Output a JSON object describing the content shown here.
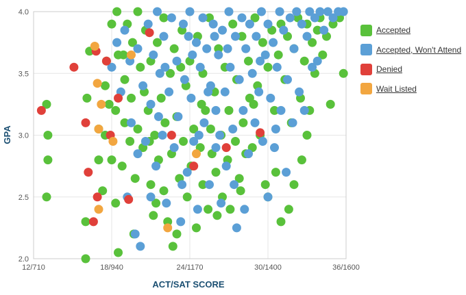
{
  "chart_data": {
    "type": "scatter",
    "title": "",
    "xlabel": "ACT/SAT SCORE",
    "ylabel": "GPA",
    "x_ticks": [
      "12/710",
      "18/940",
      "24/1170",
      "30/1400",
      "36/1600"
    ],
    "x_tick_values": [
      12,
      18,
      24,
      30,
      36
    ],
    "y_ticks": [
      "2.0",
      "2.5",
      "3.0",
      "3.5",
      "4.0"
    ],
    "y_tick_values": [
      2.0,
      2.5,
      3.0,
      3.5,
      4.0
    ],
    "xlim": [
      12,
      36
    ],
    "ylim": [
      2.0,
      4.0
    ],
    "grid": true,
    "legend_position": "right",
    "series": [
      {
        "name": "Accepted",
        "color": "#59c13b",
        "points": [
          [
            13.0,
            3.25
          ],
          [
            13.1,
            3.0
          ],
          [
            13.1,
            2.8
          ],
          [
            13.0,
            2.5
          ],
          [
            16.0,
            2.0
          ],
          [
            16.0,
            2.3
          ],
          [
            16.1,
            3.3
          ],
          [
            16.3,
            3.68
          ],
          [
            17.0,
            3.05
          ],
          [
            17.0,
            2.8
          ],
          [
            17.3,
            2.55
          ],
          [
            17.5,
            3.0
          ],
          [
            17.5,
            3.4
          ],
          [
            17.6,
            3.6
          ],
          [
            18.0,
            3.9
          ],
          [
            18.0,
            2.8
          ],
          [
            18.3,
            3.2
          ],
          [
            18.3,
            2.45
          ],
          [
            18.5,
            3.65
          ],
          [
            18.4,
            4.0
          ],
          [
            18.5,
            2.05
          ],
          [
            18.8,
            2.75
          ],
          [
            19.0,
            3.1
          ],
          [
            19.0,
            3.45
          ],
          [
            19.2,
            3.9
          ],
          [
            19.4,
            2.95
          ],
          [
            19.5,
            3.3
          ],
          [
            19.6,
            3.75
          ],
          [
            19.8,
            2.65
          ],
          [
            20.0,
            4.0
          ],
          [
            20.0,
            3.05
          ],
          [
            20.2,
            3.55
          ],
          [
            20.4,
            2.9
          ],
          [
            20.6,
            3.85
          ],
          [
            20.8,
            3.2
          ],
          [
            21.0,
            2.6
          ],
          [
            21.0,
            3.6
          ],
          [
            21.2,
            2.35
          ],
          [
            21.3,
            3.0
          ],
          [
            21.5,
            3.75
          ],
          [
            21.6,
            2.8
          ],
          [
            21.8,
            3.3
          ],
          [
            22.0,
            2.55
          ],
          [
            22.0,
            3.95
          ],
          [
            22.1,
            3.1
          ],
          [
            22.3,
            2.3
          ],
          [
            22.5,
            3.5
          ],
          [
            22.6,
            2.85
          ],
          [
            22.8,
            3.7
          ],
          [
            23.0,
            2.2
          ],
          [
            23.0,
            3.15
          ],
          [
            23.2,
            2.65
          ],
          [
            23.4,
            3.85
          ],
          [
            23.5,
            2.95
          ],
          [
            23.7,
            3.4
          ],
          [
            23.8,
            2.5
          ],
          [
            24.0,
            3.6
          ],
          [
            24.1,
            2.75
          ],
          [
            24.3,
            3.05
          ],
          [
            24.5,
            2.25
          ],
          [
            24.6,
            3.8
          ],
          [
            24.8,
            2.9
          ],
          [
            25.0,
            3.5
          ],
          [
            25.0,
            2.6
          ],
          [
            25.2,
            3.2
          ],
          [
            25.4,
            2.4
          ],
          [
            25.5,
            3.95
          ],
          [
            25.7,
            2.85
          ],
          [
            25.9,
            3.35
          ],
          [
            26.0,
            2.7
          ],
          [
            26.2,
            3.7
          ],
          [
            26.4,
            3.0
          ],
          [
            26.5,
            2.5
          ],
          [
            26.7,
            3.55
          ],
          [
            26.9,
            2.8
          ],
          [
            27.0,
            3.2
          ],
          [
            27.1,
            2.4
          ],
          [
            27.3,
            3.9
          ],
          [
            27.5,
            2.95
          ],
          [
            27.6,
            3.45
          ],
          [
            27.8,
            2.65
          ],
          [
            28.0,
            3.8
          ],
          [
            28.1,
            3.1
          ],
          [
            28.3,
            2.85
          ],
          [
            28.5,
            3.6
          ],
          [
            28.6,
            3.3
          ],
          [
            28.8,
            2.9
          ],
          [
            29.0,
            3.95
          ],
          [
            29.2,
            3.4
          ],
          [
            29.4,
            3.0
          ],
          [
            29.6,
            3.75
          ],
          [
            29.8,
            2.6
          ],
          [
            30.0,
            3.55
          ],
          [
            30.0,
            2.5
          ],
          [
            30.3,
            3.85
          ],
          [
            30.5,
            3.2
          ],
          [
            30.6,
            2.7
          ],
          [
            30.8,
            3.65
          ],
          [
            31.0,
            3.9
          ],
          [
            31.0,
            2.3
          ],
          [
            31.3,
            3.45
          ],
          [
            31.5,
            3.8
          ],
          [
            31.6,
            2.4
          ],
          [
            31.8,
            3.1
          ],
          [
            32.0,
            3.7
          ],
          [
            32.0,
            2.6
          ],
          [
            32.3,
            3.95
          ],
          [
            32.5,
            3.3
          ],
          [
            32.6,
            2.8
          ],
          [
            32.8,
            3.6
          ],
          [
            33.0,
            3.9
          ],
          [
            33.2,
            3.2
          ],
          [
            33.4,
            3.75
          ],
          [
            33.6,
            3.5
          ],
          [
            33.8,
            3.85
          ],
          [
            34.0,
            3.95
          ],
          [
            34.2,
            3.65
          ],
          [
            34.5,
            3.8
          ],
          [
            35.0,
            3.9
          ],
          [
            35.5,
            3.95
          ],
          [
            35.8,
            3.5
          ],
          [
            34.8,
            3.25
          ],
          [
            33.0,
            3.0
          ],
          [
            20.5,
            3.35
          ],
          [
            21.4,
            2.45
          ],
          [
            22.7,
            2.1
          ],
          [
            23.3,
            3.55
          ],
          [
            24.9,
            3.25
          ],
          [
            26.1,
            2.35
          ],
          [
            27.9,
            2.55
          ],
          [
            19.7,
            2.2
          ],
          [
            20.9,
            2.95
          ],
          [
            18.9,
            3.65
          ],
          [
            17.8,
            3.25
          ],
          [
            25.6,
            3.05
          ],
          [
            28.9,
            3.25
          ]
        ]
      },
      {
        "name": "Accepted, Won't Attend",
        "color": "#5b9fd6",
        "points": [
          [
            18.0,
            3.55
          ],
          [
            18.4,
            3.75
          ],
          [
            18.7,
            3.35
          ],
          [
            19.0,
            3.85
          ],
          [
            19.2,
            2.5
          ],
          [
            19.4,
            3.6
          ],
          [
            19.5,
            3.1
          ],
          [
            19.8,
            2.2
          ],
          [
            20.0,
            3.7
          ],
          [
            20.0,
            2.85
          ],
          [
            20.2,
            2.1
          ],
          [
            20.4,
            3.4
          ],
          [
            20.6,
            2.95
          ],
          [
            20.8,
            3.9
          ],
          [
            21.0,
            3.25
          ],
          [
            21.0,
            2.5
          ],
          [
            21.2,
            3.65
          ],
          [
            21.4,
            2.75
          ],
          [
            21.5,
            4.0
          ],
          [
            21.7,
            3.5
          ],
          [
            21.9,
            3.0
          ],
          [
            22.0,
            3.8
          ],
          [
            22.2,
            2.45
          ],
          [
            22.4,
            3.35
          ],
          [
            22.6,
            3.95
          ],
          [
            22.8,
            2.9
          ],
          [
            23.0,
            3.6
          ],
          [
            23.1,
            3.15
          ],
          [
            23.3,
            2.3
          ],
          [
            23.5,
            3.9
          ],
          [
            23.6,
            3.45
          ],
          [
            23.8,
            2.7
          ],
          [
            24.0,
            4.0
          ],
          [
            24.1,
            3.3
          ],
          [
            24.3,
            2.95
          ],
          [
            24.5,
            3.75
          ],
          [
            24.6,
            2.4
          ],
          [
            24.8,
            3.55
          ],
          [
            25.0,
            3.95
          ],
          [
            25.1,
            3.1
          ],
          [
            25.3,
            3.7
          ],
          [
            25.5,
            2.6
          ],
          [
            25.6,
            3.4
          ],
          [
            25.8,
            3.9
          ],
          [
            26.0,
            3.2
          ],
          [
            26.0,
            2.9
          ],
          [
            26.2,
            3.65
          ],
          [
            26.4,
            2.45
          ],
          [
            26.5,
            3.85
          ],
          [
            26.7,
            3.35
          ],
          [
            26.8,
            2.75
          ],
          [
            27.0,
            4.0
          ],
          [
            27.1,
            3.55
          ],
          [
            27.3,
            3.05
          ],
          [
            27.5,
            3.8
          ],
          [
            27.6,
            2.25
          ],
          [
            27.8,
            3.45
          ],
          [
            28.0,
            3.95
          ],
          [
            28.1,
            3.2
          ],
          [
            28.3,
            3.7
          ],
          [
            28.5,
            2.85
          ],
          [
            28.6,
            3.9
          ],
          [
            28.8,
            3.5
          ],
          [
            29.0,
            3.1
          ],
          [
            29.1,
            3.8
          ],
          [
            29.3,
            3.35
          ],
          [
            29.5,
            4.0
          ],
          [
            29.6,
            2.95
          ],
          [
            29.8,
            3.65
          ],
          [
            30.0,
            3.9
          ],
          [
            30.0,
            2.5
          ],
          [
            30.2,
            3.3
          ],
          [
            30.4,
            3.75
          ],
          [
            30.5,
            2.9
          ],
          [
            30.7,
            3.55
          ],
          [
            30.9,
            4.0
          ],
          [
            31.0,
            3.2
          ],
          [
            31.2,
            3.85
          ],
          [
            31.4,
            2.7
          ],
          [
            31.5,
            3.45
          ],
          [
            31.7,
            3.95
          ],
          [
            31.9,
            3.1
          ],
          [
            32.0,
            3.7
          ],
          [
            32.2,
            4.0
          ],
          [
            32.4,
            3.35
          ],
          [
            32.6,
            3.9
          ],
          [
            32.8,
            3.2
          ],
          [
            33.0,
            3.8
          ],
          [
            33.2,
            4.0
          ],
          [
            33.4,
            3.55
          ],
          [
            33.6,
            3.95
          ],
          [
            33.8,
            3.6
          ],
          [
            34.0,
            4.0
          ],
          [
            34.3,
            3.85
          ],
          [
            34.6,
            4.0
          ],
          [
            35.0,
            3.95
          ],
          [
            35.4,
            4.0
          ],
          [
            35.8,
            4.0
          ],
          [
            21.6,
            3.15
          ],
          [
            23.4,
            2.6
          ],
          [
            24.7,
            3.0
          ],
          [
            26.3,
            3.0
          ],
          [
            27.4,
            2.6
          ],
          [
            28.2,
            2.4
          ],
          [
            22.1,
            3.55
          ],
          [
            25.4,
            3.35
          ],
          [
            29.4,
            3.6
          ],
          [
            24.2,
            3.65
          ],
          [
            26.9,
            3.7
          ],
          [
            23.9,
            3.8
          ],
          [
            30.6,
            3.05
          ],
          [
            25.9,
            3.8
          ]
        ]
      },
      {
        "name": "Denied",
        "color": "#e0403a",
        "points": [
          [
            12.6,
            3.2
          ],
          [
            15.1,
            3.55
          ],
          [
            16.0,
            3.1
          ],
          [
            16.2,
            2.7
          ],
          [
            16.6,
            2.3
          ],
          [
            16.8,
            3.68
          ],
          [
            16.9,
            2.5
          ],
          [
            17.6,
            3.6
          ],
          [
            17.9,
            3.0
          ],
          [
            18.5,
            3.3
          ],
          [
            19.3,
            2.48
          ],
          [
            20.9,
            3.83
          ],
          [
            22.6,
            3.0
          ],
          [
            24.3,
            2.75
          ],
          [
            26.8,
            2.9
          ],
          [
            29.4,
            3.02
          ]
        ]
      },
      {
        "name": "Wait Listed",
        "color": "#f2a640",
        "points": [
          [
            16.7,
            3.72
          ],
          [
            16.9,
            3.42
          ],
          [
            17.0,
            3.05
          ],
          [
            17.0,
            2.4
          ],
          [
            17.2,
            3.25
          ],
          [
            18.1,
            2.95
          ],
          [
            19.5,
            3.65
          ],
          [
            22.3,
            2.25
          ],
          [
            24.5,
            2.85
          ]
        ]
      }
    ]
  }
}
